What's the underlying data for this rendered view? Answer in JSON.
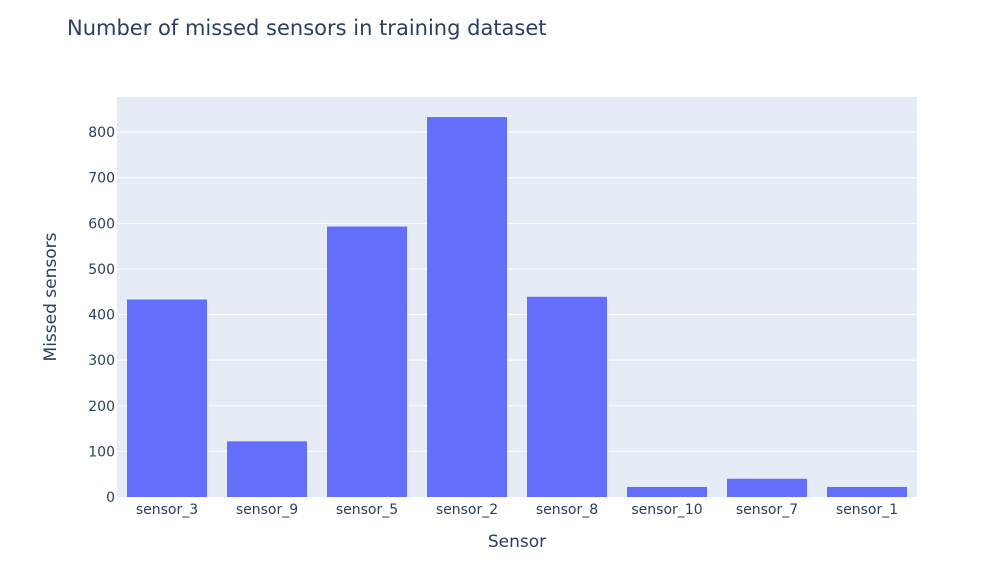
{
  "chart_data": {
    "type": "bar",
    "title": "Number of missed sensors in training dataset",
    "xlabel": "Sensor",
    "ylabel": "Missed sensors",
    "categories": [
      "sensor_3",
      "sensor_9",
      "sensor_5",
      "sensor_2",
      "sensor_8",
      "sensor_10",
      "sensor_7",
      "sensor_1"
    ],
    "values": [
      433,
      122,
      593,
      833,
      439,
      22,
      40,
      22
    ],
    "ylim": [
      0,
      877
    ],
    "yticks": [
      0,
      100,
      200,
      300,
      400,
      500,
      600,
      700,
      800
    ],
    "grid": true,
    "legend": "none",
    "colors": {
      "bar": "#636efa",
      "plot_background": "#e5ecf6",
      "grid": "#ffffff",
      "text": "#2a3f5f"
    }
  }
}
